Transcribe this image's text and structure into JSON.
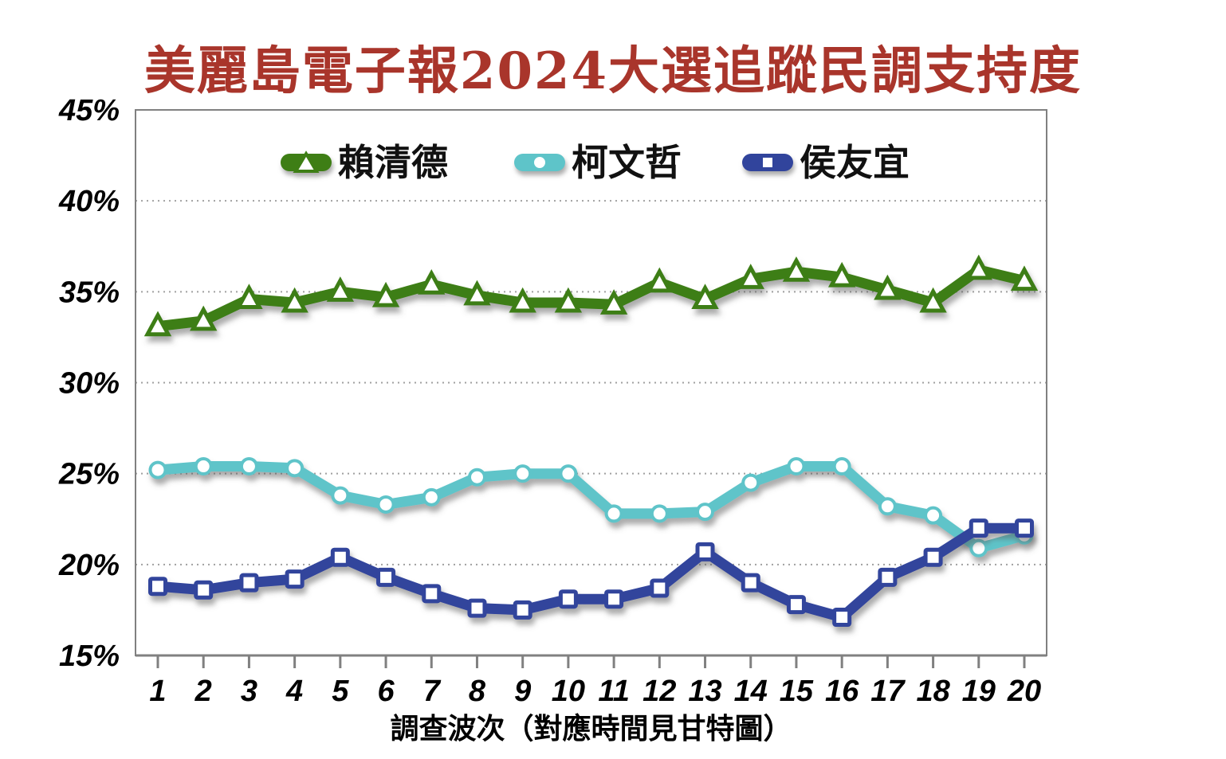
{
  "title": "美麗島電子報2024大選追蹤民調支持度",
  "colors": {
    "title": "#A9352B",
    "axis": "#808080",
    "grid": "#A0A0A0",
    "text": "#000000"
  },
  "chart_data": {
    "type": "line",
    "title": "美麗島電子報2024大選追蹤民調支持度",
    "xlabel": "調查波次（對應時間見甘特圖）",
    "ylabel": "",
    "x": [
      1,
      2,
      3,
      4,
      5,
      6,
      7,
      8,
      9,
      10,
      11,
      12,
      13,
      14,
      15,
      16,
      17,
      18,
      19,
      20
    ],
    "x_tick_labels": [
      "1",
      "2",
      "3",
      "4",
      "5",
      "6",
      "7",
      "8",
      "9",
      "10",
      "11",
      "12",
      "13",
      "14",
      "15",
      "16",
      "17",
      "18",
      "19",
      "20"
    ],
    "ylim": [
      15,
      45
    ],
    "yticks": [
      45,
      40,
      35,
      30,
      25,
      20,
      15
    ],
    "y_tick_labels": [
      "45%",
      "40%",
      "35%",
      "30%",
      "25%",
      "20%",
      "15%"
    ],
    "grid": "horizontal-dotted",
    "legend_position": "top-inside",
    "series": [
      {
        "key": "lai",
        "name": "賴清德",
        "color": "#3E7E15",
        "marker": "triangle",
        "values": [
          33.1,
          33.4,
          34.6,
          34.4,
          35.0,
          34.7,
          35.4,
          34.8,
          34.4,
          34.4,
          34.3,
          35.5,
          34.6,
          35.7,
          36.1,
          35.8,
          35.1,
          34.4,
          36.2,
          35.6
        ]
      },
      {
        "key": "ko",
        "name": "柯文哲",
        "color": "#5EC4C9",
        "marker": "circle",
        "values": [
          25.2,
          25.4,
          25.4,
          25.3,
          23.8,
          23.3,
          23.7,
          24.8,
          25.0,
          25.0,
          22.8,
          22.8,
          22.9,
          24.5,
          25.4,
          25.4,
          23.2,
          22.7,
          20.9,
          21.6
        ]
      },
      {
        "key": "hou",
        "name": "侯友宜",
        "color": "#31449C",
        "marker": "square",
        "values": [
          18.8,
          18.6,
          19.0,
          19.2,
          20.4,
          19.3,
          18.4,
          17.6,
          17.5,
          18.1,
          18.1,
          18.7,
          20.7,
          19.0,
          17.8,
          17.1,
          19.3,
          20.4,
          22.0,
          22.0
        ]
      }
    ]
  }
}
